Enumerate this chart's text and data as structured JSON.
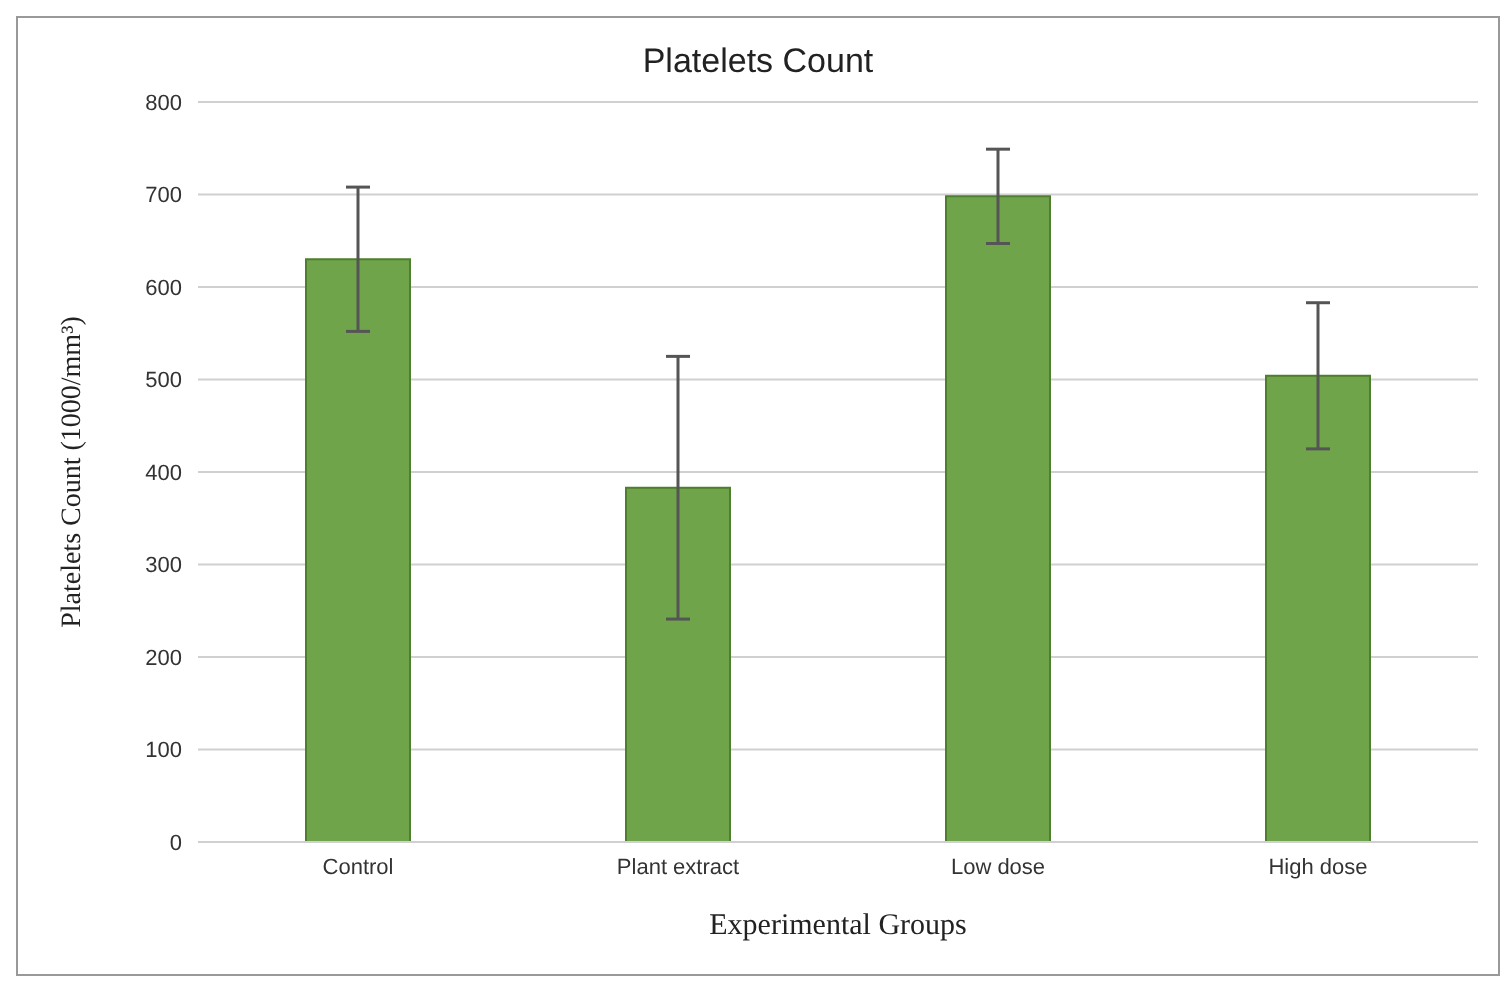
{
  "chart_data": {
    "type": "bar",
    "title": "Platelets Count",
    "xlabel": "Experimental Groups",
    "ylabel": "Platelets Count (1000/mm³)",
    "categories": [
      "Control",
      "Plant extract",
      "Low dose",
      "High dose"
    ],
    "values": [
      630,
      383,
      698,
      504
    ],
    "errors": [
      78,
      142,
      51,
      79
    ],
    "color": "#70a44a",
    "ylim": [
      0,
      800
    ],
    "yticks": [
      0,
      100,
      200,
      300,
      400,
      500,
      600,
      700,
      800
    ],
    "grid": "y"
  }
}
